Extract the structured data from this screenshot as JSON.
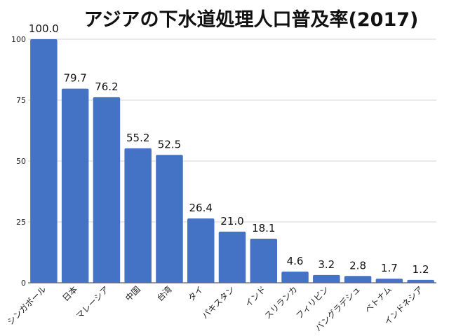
{
  "chart_data": {
    "type": "bar",
    "title": "アジアの下水道処理人口普及率(2017)",
    "xlabel": "",
    "ylabel": "",
    "ylim": [
      0,
      100
    ],
    "yticks": [
      0,
      25,
      50,
      75,
      100
    ],
    "grid": true,
    "legend": "none",
    "categories": [
      "シンガポール",
      "日本",
      "マレーシア",
      "中国",
      "台湾",
      "タイ",
      "パキスタン",
      "インド",
      "スリランカ",
      "フィリピン",
      "バングラデシュ",
      "ベトナム",
      "インドネシア"
    ],
    "values": [
      100.0,
      79.7,
      76.2,
      55.2,
      52.5,
      26.4,
      21.0,
      18.1,
      4.6,
      3.2,
      2.8,
      1.7,
      1.2
    ],
    "value_labels": [
      "100.0",
      "79.7",
      "76.2",
      "55.2",
      "52.5",
      "26.4",
      "21.0",
      "18.1",
      "4.6",
      "3.2",
      "2.8",
      "1.7",
      "1.2"
    ],
    "colors": {
      "bar": "#4472c4",
      "grid": "#d6d6d6",
      "text": "#111111"
    }
  }
}
